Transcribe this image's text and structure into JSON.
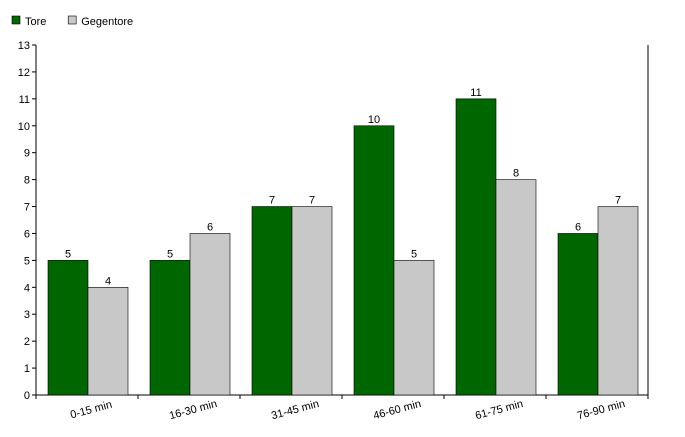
{
  "chart_data": {
    "type": "bar",
    "categories": [
      "0-15 min",
      "16-30 min",
      "31-45 min",
      "46-60 min",
      "61-75 min",
      "76-90 min"
    ],
    "series": [
      {
        "name": "Tore",
        "values": [
          5,
          5,
          7,
          10,
          11,
          6
        ],
        "color": "#006600"
      },
      {
        "name": "Gegentore",
        "values": [
          4,
          6,
          7,
          5,
          8,
          7
        ],
        "color": "#c8c8c8"
      }
    ],
    "ylim": [
      0,
      13
    ],
    "yticks": [
      0,
      1,
      2,
      3,
      4,
      5,
      6,
      7,
      8,
      9,
      10,
      11,
      12,
      13
    ],
    "grid": false,
    "legend_position": "top-left",
    "data_labels": true,
    "xtick_rotation_deg": -15
  }
}
